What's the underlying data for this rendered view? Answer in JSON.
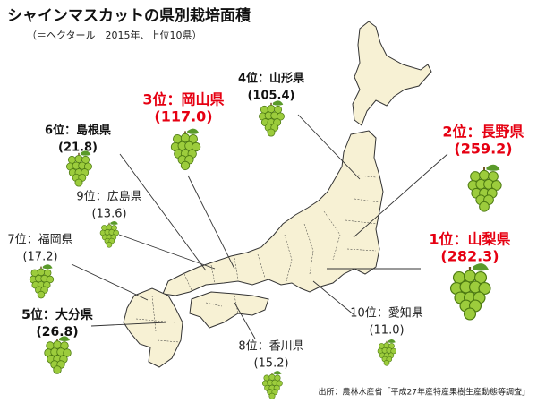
{
  "title": "シャインマスカットの県別栽培面積",
  "subtitle": "（＝ヘクタール　2015年、上位10県）",
  "items": [
    {
      "label": "1位：山梨県",
      "value": "(282.3)"
    },
    {
      "label": "2位：長野県",
      "value": "(259.2)"
    },
    {
      "label": "3位：岡山県",
      "value": "(117.0)"
    },
    {
      "label": "4位：山形県",
      "value": "(105.4)"
    },
    {
      "label": "5位：大分県",
      "value": "(26.8)"
    },
    {
      "label": "6位：島根県",
      "value": "(21.8)"
    },
    {
      "label": "7位：福岡県",
      "value": "(17.2)"
    },
    {
      "label": "8位：香川県",
      "value": "(15.2)"
    },
    {
      "label": "9位：広島県",
      "value": "(13.6)"
    },
    {
      "label": "10位：愛知県",
      "value": "(11.0)"
    }
  ],
  "source": "出所：農林水産省「平成27年産特産果樹生産動態等調査」"
}
